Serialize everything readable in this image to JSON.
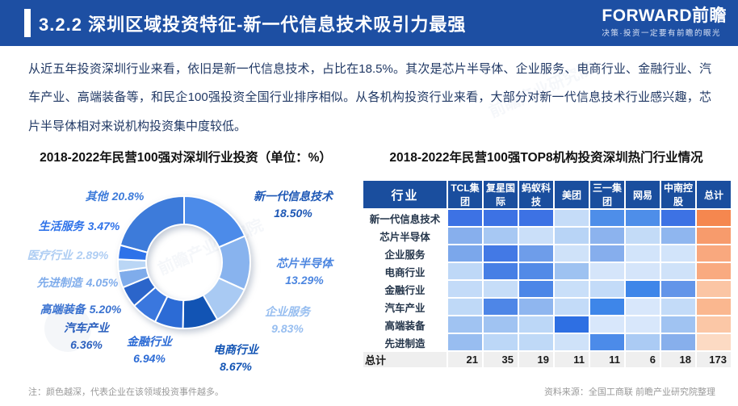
{
  "header": {
    "section_number": "3.2.2",
    "title": "深圳区域投资特征-新一代信息技术吸引力最强",
    "bg_color": "#1D4FA3",
    "logo_text": "FORWARD前瞻",
    "logo_tagline": "决策·投资一定要有前瞻的眼光"
  },
  "intro_paragraph": "从近五年投资深圳行业来看，依旧是新一代信息技术，占比在18.5%。其次是芯片半导体、企业服务、电商行业、金融行业、汽车产业、高端装备等，和民企100强投资全国行业排序相似。从各机构投资行业来看，大部分对新一代信息技术行业感兴趣，芯片半导体相对来说机构投资集中度较低。",
  "chart_data": [
    {
      "type": "pie",
      "subtype": "donut",
      "title": "2018-2022年民营100强对深圳行业投资（单位：%）",
      "unit": "%",
      "start_angle_deg": 0,
      "direction": "clockwise",
      "segments": [
        {
          "label": "新一代信息技术",
          "value": 18.5,
          "display": "18.50%",
          "color": "#4C8BE9",
          "label_color": "#1D57B5"
        },
        {
          "label": "芯片半导体",
          "value": 13.29,
          "display": "13.29%",
          "color": "#88B3EE",
          "label_color": "#4C86E0"
        },
        {
          "label": "企业服务",
          "value": 9.83,
          "display": "9.83%",
          "color": "#A9CAF3",
          "label_color": "#97BEF0"
        },
        {
          "label": "电商行业",
          "value": 8.67,
          "display": "8.67%",
          "color": "#1254B4",
          "label_color": "#1254B4"
        },
        {
          "label": "金融行业",
          "value": 6.94,
          "display": "6.94%",
          "color": "#2C6BD5",
          "label_color": "#2C6BD5"
        },
        {
          "label": "汽车产业",
          "value": 6.36,
          "display": "6.36%",
          "color": "#3A77DE",
          "label_color": "#2A5FBE"
        },
        {
          "label": "高端装备",
          "value": 5.2,
          "display": "5.20%",
          "color": "#2B65CA",
          "label_color": "#3A72D0"
        },
        {
          "label": "先进制造",
          "value": 4.05,
          "display": "4.05%",
          "color": "#7FACEB",
          "label_color": "#7FACEB"
        },
        {
          "label": "医疗行业",
          "value": 2.89,
          "display": "2.89%",
          "color": "#BAD6F5",
          "label_color": "#AECDF3"
        },
        {
          "label": "生活服务",
          "value": 3.47,
          "display": "3.47%",
          "color": "#2E72E9",
          "label_color": "#2E72E9"
        },
        {
          "label": "其他",
          "value": 20.8,
          "display": "20.8%",
          "color": "#3D7BDA",
          "label_color": "#3D7BDA"
        }
      ]
    },
    {
      "type": "heatmap",
      "title": "2018-2022年民营100强TOP8机构投资深圳热门行业情况",
      "header_bg": "#1A4E9E",
      "columns": [
        "行业",
        "TCL集团",
        "复星国际",
        "蚂蚁科技",
        "美团",
        "三一集团",
        "网易",
        "中南控股",
        "总计"
      ],
      "rows": [
        {
          "label": "新一代信息技术",
          "cell_colors": [
            "#3D72E4",
            "#3D72E4",
            "#3D72E4",
            "#C5DCF8",
            "#4E8EE9",
            "#4E8EE9",
            "#3D72E4",
            "#F5874F"
          ]
        },
        {
          "label": "芯片半导体",
          "cell_colors": [
            "#87AFED",
            "#A7C8F3",
            "#CADFF9",
            "#B8D4F6",
            "#8CB3EE",
            "#C3DBF7",
            "#8FB6EF",
            "#F79B6C"
          ]
        },
        {
          "label": "企业服务",
          "cell_colors": [
            "#7BA7EB",
            "#4379E5",
            "#6E9DEA",
            "#CFE2F9",
            "#86AEED",
            "#D2E4FA",
            "#D2E4FA",
            "#F9A87E"
          ]
        },
        {
          "label": "电商行业",
          "cell_colors": [
            "#BED8F7",
            "#477FE5",
            "#528AE7",
            "#9EC2F1",
            "#D5E5FA",
            "#D5E5FA",
            "#CFE2F9",
            "#F9AA80"
          ]
        },
        {
          "label": "金融行业",
          "cell_colors": [
            "#C3DBF8",
            "#C6DDF8",
            "#4C86E7",
            "#C9DFF9",
            "#C3DBF8",
            "#3E86E9",
            "#6395E9",
            "#FBC5A4"
          ]
        },
        {
          "label": "汽车产业",
          "cell_colors": [
            "#BFD9F7",
            "#4E86E7",
            "#8FB6EF",
            "#C3DBF8",
            "#3E86E9",
            "#D8E7FB",
            "#C3DBF8",
            "#FAB78F"
          ]
        },
        {
          "label": "高端装备",
          "cell_colors": [
            "#A0C3F2",
            "#A0C3F2",
            "#BCD7F7",
            "#2E6FE3",
            "#D8E7FB",
            "#D8E7FB",
            "#A0C3F2",
            "#FBC7A6"
          ]
        },
        {
          "label": "先进制造",
          "cell_colors": [
            "#98BDF0",
            "#BCD7F7",
            "#BFD9F7",
            "#CFE2F9",
            "#4C8BE9",
            "#ABCBF4",
            "#87AFEC",
            "#FCDAC3"
          ]
        }
      ],
      "totals_row": {
        "label": "总计",
        "values": [
          21,
          35,
          19,
          11,
          11,
          6,
          18,
          173
        ]
      },
      "totals_row_bg": "#EFEFEF"
    }
  ],
  "footer": {
    "note": "注：颜色越深，代表企业在该领域投资事件越多。",
    "source": "资料来源：全国工商联 前瞻产业研究院整理"
  },
  "watermark_text": "前瞻产业研究院"
}
